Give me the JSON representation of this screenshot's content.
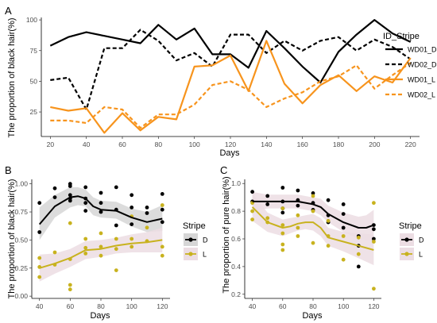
{
  "colors": {
    "black": "#000000",
    "orange": "#f7941d",
    "olive": "#c8b21e",
    "band_dark": "#d6d6d6",
    "band_light": "#ecdde3",
    "panel_bg": "#ffffff"
  },
  "chart_data": [
    {
      "panel": "A",
      "type": "line",
      "xlabel": "Days",
      "ylabel": "The proportion of black hair(%)",
      "xlim": [
        15,
        225
      ],
      "ylim": [
        5,
        102
      ],
      "xticks": [
        20,
        40,
        60,
        80,
        100,
        120,
        140,
        160,
        180,
        200,
        220
      ],
      "yticks": [
        25,
        50,
        75,
        100
      ],
      "legend_title": "ID_Stripe",
      "legend_position": "right",
      "series": [
        {
          "name": "WD01_D",
          "color": "#000000",
          "dash": "solid",
          "x": [
            20,
            30,
            40,
            50,
            60,
            70,
            80,
            90,
            100,
            110,
            120,
            130,
            140,
            150,
            160,
            170,
            180,
            190,
            200,
            210,
            220
          ],
          "y": [
            79,
            86,
            90,
            87,
            84,
            81,
            96,
            84,
            93,
            72,
            72,
            61,
            91,
            77,
            62,
            49,
            74,
            88,
            100,
            89,
            82
          ]
        },
        {
          "name": "WD02_D",
          "color": "#000000",
          "dash": "dashed",
          "x": [
            20,
            30,
            40,
            50,
            60,
            70,
            80,
            90,
            100,
            110,
            120,
            130,
            140,
            150,
            160,
            170,
            180,
            190,
            200,
            210,
            220
          ],
          "y": [
            51,
            53,
            27,
            77,
            77,
            92,
            83,
            67,
            73,
            62,
            88,
            88,
            73,
            83,
            75,
            83,
            86,
            75,
            84,
            78,
            68
          ]
        },
        {
          "name": "WD01_L",
          "color": "#f7941d",
          "dash": "solid",
          "x": [
            20,
            30,
            40,
            50,
            60,
            70,
            80,
            90,
            100,
            110,
            120,
            130,
            140,
            150,
            160,
            170,
            180,
            190,
            200,
            210,
            220
          ],
          "y": [
            29,
            26,
            28,
            8,
            24,
            10,
            21,
            19,
            62,
            63,
            71,
            42,
            83,
            48,
            32,
            47,
            55,
            42,
            54,
            49,
            69
          ]
        },
        {
          "name": "WD02_L",
          "color": "#f7941d",
          "dash": "dashed",
          "x": [
            20,
            30,
            40,
            50,
            60,
            70,
            80,
            90,
            100,
            110,
            120,
            130,
            140,
            150,
            160,
            170,
            180,
            190,
            200,
            210,
            220
          ],
          "y": [
            18,
            18,
            16,
            29,
            27,
            12,
            23,
            23,
            31,
            47,
            50,
            43,
            29,
            36,
            41,
            50,
            54,
            63,
            44,
            55,
            65
          ]
        }
      ]
    },
    {
      "panel": "B",
      "type": "scatter",
      "xlabel": "Days",
      "ylabel": "The proportion of black hair(%)",
      "xlim": [
        35,
        125
      ],
      "ylim": [
        -0.02,
        1.04
      ],
      "xticks": [
        40,
        60,
        80,
        100,
        120
      ],
      "yticks": [
        0.0,
        0.25,
        0.5,
        0.75,
        1.0
      ],
      "ytick_labels": [
        "0.00",
        "0.25",
        "0.50",
        "0.75",
        "1.00"
      ],
      "legend_title": "Stripe",
      "legend_position": "right",
      "series": [
        {
          "name": "D",
          "color": "#000000",
          "band_color": "#d6d6d6",
          "points_x": [
            40,
            40,
            50,
            50,
            60,
            60,
            60,
            60,
            60,
            70,
            70,
            70,
            70,
            80,
            80,
            80,
            90,
            90,
            90,
            100,
            100,
            100,
            110,
            110,
            120,
            120,
            120
          ],
          "points_y": [
            0.83,
            0.57,
            0.96,
            0.88,
            1.0,
            0.98,
            0.9,
            0.87,
            0.85,
            0.97,
            0.87,
            0.83,
            0.76,
            0.92,
            0.83,
            0.75,
            0.97,
            0.77,
            0.63,
            0.9,
            0.79,
            0.64,
            0.79,
            0.74,
            0.91,
            0.77,
            0.66
          ],
          "fit_x": [
            40,
            50,
            60,
            65,
            70,
            75,
            80,
            90,
            100,
            110,
            120
          ],
          "fit_y": [
            0.64,
            0.8,
            0.88,
            0.89,
            0.87,
            0.8,
            0.77,
            0.76,
            0.7,
            0.66,
            0.69
          ],
          "band_lo": [
            0.5,
            0.7,
            0.79,
            0.81,
            0.8,
            0.72,
            0.7,
            0.69,
            0.62,
            0.57,
            0.58
          ],
          "band_hi": [
            0.79,
            0.9,
            0.97,
            0.97,
            0.95,
            0.88,
            0.85,
            0.84,
            0.78,
            0.75,
            0.81
          ]
        },
        {
          "name": "L",
          "color": "#c8b21e",
          "band_color": "#ecdde3",
          "points_x": [
            40,
            40,
            40,
            50,
            50,
            60,
            60,
            60,
            60,
            70,
            70,
            70,
            80,
            80,
            80,
            90,
            90,
            90,
            100,
            100,
            100,
            110,
            110,
            120,
            120,
            120
          ],
          "points_y": [
            0.34,
            0.26,
            0.17,
            0.39,
            0.28,
            0.65,
            0.33,
            0.1,
            0.06,
            0.51,
            0.43,
            0.38,
            0.56,
            0.44,
            0.36,
            0.51,
            0.42,
            0.23,
            0.71,
            0.51,
            0.44,
            0.61,
            0.49,
            0.81,
            0.44,
            0.36
          ],
          "fit_x": [
            40,
            50,
            60,
            70,
            80,
            90,
            100,
            110,
            120
          ],
          "fit_y": [
            0.25,
            0.29,
            0.34,
            0.41,
            0.42,
            0.45,
            0.47,
            0.48,
            0.5
          ],
          "band_lo": [
            0.13,
            0.2,
            0.26,
            0.33,
            0.35,
            0.38,
            0.39,
            0.39,
            0.39
          ],
          "band_hi": [
            0.37,
            0.38,
            0.42,
            0.49,
            0.5,
            0.52,
            0.55,
            0.57,
            0.61
          ]
        }
      ]
    },
    {
      "panel": "C",
      "type": "scatter",
      "xlabel": "Days",
      "ylabel": "The proportion of pure hair(%)",
      "xlim": [
        35,
        125
      ],
      "ylim": [
        0.17,
        1.03
      ],
      "xticks": [
        40,
        60,
        80,
        100,
        120
      ],
      "yticks": [
        0.2,
        0.4,
        0.6,
        0.8,
        1.0
      ],
      "ytick_labels": [
        "0.2",
        "0.4",
        "0.6",
        "0.8",
        "1.0"
      ],
      "legend_title": "Stripe",
      "legend_position": "right",
      "series": [
        {
          "name": "D",
          "color": "#000000",
          "band_color": "#ecdde3",
          "points_x": [
            40,
            40,
            50,
            50,
            60,
            60,
            60,
            60,
            70,
            70,
            70,
            80,
            80,
            80,
            90,
            90,
            90,
            100,
            100,
            100,
            110,
            110,
            110,
            120,
            120,
            120
          ],
          "points_y": [
            0.94,
            0.87,
            0.91,
            0.85,
            0.97,
            0.87,
            0.82,
            0.79,
            0.95,
            0.88,
            0.84,
            0.93,
            0.86,
            0.81,
            0.88,
            0.77,
            0.72,
            0.85,
            0.78,
            0.68,
            0.55,
            0.4,
            0.62,
            0.7,
            0.67,
            0.6
          ],
          "fit_x": [
            40,
            50,
            60,
            70,
            80,
            85,
            90,
            100,
            110,
            115,
            120
          ],
          "fit_y": [
            0.87,
            0.87,
            0.87,
            0.87,
            0.85,
            0.83,
            0.78,
            0.72,
            0.68,
            0.68,
            0.7
          ],
          "band_lo": [
            0.8,
            0.82,
            0.82,
            0.82,
            0.8,
            0.77,
            0.72,
            0.65,
            0.6,
            0.59,
            0.59
          ],
          "band_hi": [
            0.94,
            0.92,
            0.92,
            0.92,
            0.9,
            0.89,
            0.84,
            0.79,
            0.76,
            0.77,
            0.81
          ]
        },
        {
          "name": "L",
          "color": "#c8b21e",
          "band_color": "#ecdde3",
          "points_x": [
            40,
            40,
            40,
            50,
            50,
            60,
            60,
            60,
            60,
            60,
            70,
            70,
            70,
            80,
            80,
            80,
            90,
            90,
            90,
            100,
            100,
            110,
            110,
            120,
            120,
            120
          ],
          "points_y": [
            0.86,
            0.8,
            0.74,
            0.75,
            0.72,
            0.82,
            0.7,
            0.64,
            0.56,
            0.52,
            0.77,
            0.68,
            0.62,
            0.91,
            0.8,
            0.57,
            0.73,
            0.62,
            0.55,
            0.62,
            0.45,
            0.61,
            0.49,
            0.86,
            0.58,
            0.24
          ],
          "fit_x": [
            40,
            50,
            60,
            65,
            70,
            75,
            80,
            85,
            90,
            100,
            110,
            120
          ],
          "fit_y": [
            0.83,
            0.72,
            0.68,
            0.69,
            0.71,
            0.72,
            0.72,
            0.68,
            0.61,
            0.58,
            0.55,
            0.52
          ],
          "band_lo": [
            0.73,
            0.65,
            0.62,
            0.64,
            0.66,
            0.67,
            0.66,
            0.62,
            0.55,
            0.51,
            0.46,
            0.41
          ],
          "band_hi": [
            0.93,
            0.79,
            0.74,
            0.75,
            0.76,
            0.77,
            0.78,
            0.75,
            0.68,
            0.65,
            0.64,
            0.63
          ]
        }
      ]
    }
  ]
}
